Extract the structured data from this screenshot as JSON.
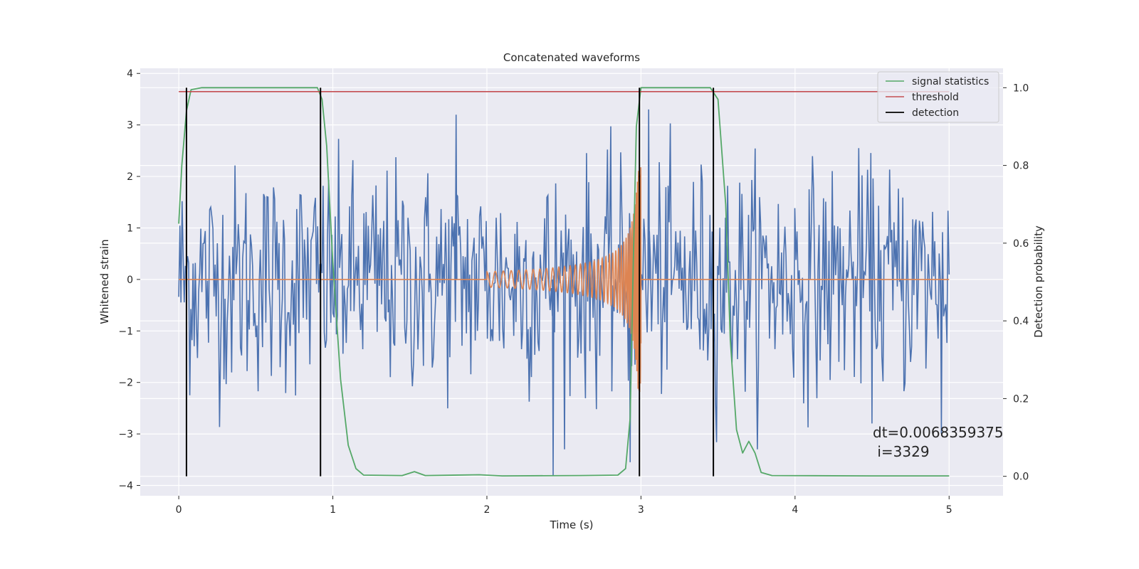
{
  "chart_data": {
    "type": "line",
    "title": "Concatenated waveforms",
    "xlabel": "Time (s)",
    "ylabel": "Whitened strain",
    "y2label": "Detection probability",
    "xlim": [
      -0.25,
      5.35
    ],
    "ylim": [
      -4.2,
      4.1
    ],
    "y2lim": [
      -0.05,
      1.05
    ],
    "xticks": [
      0,
      1,
      2,
      3,
      4,
      5
    ],
    "yticks": [
      -4,
      -3,
      -2,
      -1,
      0,
      1,
      2,
      3,
      4
    ],
    "y2ticks": [
      0.0,
      0.2,
      0.4,
      0.6,
      0.8,
      1.0
    ],
    "xtick_labels": [
      "0",
      "1",
      "2",
      "3",
      "4",
      "5"
    ],
    "ytick_labels": [
      "−4",
      "−3",
      "−2",
      "−1",
      "0",
      "1",
      "2",
      "3",
      "4"
    ],
    "y2tick_labels": [
      "0.0",
      "0.2",
      "0.4",
      "0.6",
      "0.8",
      "1.0"
    ],
    "grid": true,
    "legend_position": "top-right",
    "colors": {
      "noise": "#4c72b0",
      "chirp": "#dd8452",
      "signal_statistics": "#55a868",
      "threshold": "#c44e52",
      "detection": "#000000",
      "background": "#eaeaf2"
    },
    "series": [
      {
        "name": "",
        "axis": "left",
        "kind": "noise",
        "t_range": [
          0,
          5
        ],
        "sample_count": 700,
        "approx_amplitude": 2.6,
        "notable_peaks": [
          {
            "t": 2.43,
            "y": -3.8
          },
          {
            "t": 2.93,
            "y": -3.55
          },
          {
            "t": 1.8,
            "y": 3.2
          },
          {
            "t": 3.05,
            "y": 3.3
          },
          {
            "t": 4.95,
            "y": -3.0
          }
        ]
      },
      {
        "name": "",
        "axis": "left",
        "kind": "chirp",
        "points": [
          {
            "t": 0.0,
            "y": 0.0
          },
          {
            "t": 2.0,
            "y": 0.0
          },
          {
            "t": 2.0,
            "y": 0.15
          },
          {
            "t": 2.5,
            "y": 0.35
          },
          {
            "t": 2.8,
            "y": 0.7
          },
          {
            "t": 2.97,
            "y": 2.2
          },
          {
            "t": 3.0,
            "y": 0.0
          },
          {
            "t": 5.0,
            "y": 0.0
          }
        ],
        "chirp_start": 2.0,
        "chirp_end": 3.0,
        "start_amplitude": 0.15,
        "end_amplitude": 2.2
      },
      {
        "name": "signal statistics",
        "axis": "right",
        "points": [
          [
            0.0,
            0.65
          ],
          [
            0.02,
            0.8
          ],
          [
            0.05,
            0.94
          ],
          [
            0.08,
            0.995
          ],
          [
            0.15,
            1.0
          ],
          [
            0.9,
            1.0
          ],
          [
            0.93,
            0.97
          ],
          [
            0.96,
            0.85
          ],
          [
            1.0,
            0.55
          ],
          [
            1.05,
            0.25
          ],
          [
            1.1,
            0.08
          ],
          [
            1.15,
            0.02
          ],
          [
            1.2,
            0.003
          ],
          [
            1.45,
            0.002
          ],
          [
            1.53,
            0.012
          ],
          [
            1.6,
            0.002
          ],
          [
            1.95,
            0.004
          ],
          [
            2.1,
            0.001
          ],
          [
            2.6,
            0.002
          ],
          [
            2.85,
            0.003
          ],
          [
            2.9,
            0.02
          ],
          [
            2.93,
            0.15
          ],
          [
            2.95,
            0.55
          ],
          [
            2.97,
            0.9
          ],
          [
            3.0,
            1.0
          ],
          [
            3.45,
            1.0
          ],
          [
            3.5,
            0.97
          ],
          [
            3.55,
            0.7
          ],
          [
            3.58,
            0.35
          ],
          [
            3.62,
            0.12
          ],
          [
            3.66,
            0.06
          ],
          [
            3.7,
            0.09
          ],
          [
            3.74,
            0.06
          ],
          [
            3.78,
            0.01
          ],
          [
            3.85,
            0.002
          ],
          [
            4.5,
            0.001
          ],
          [
            5.0,
            0.001
          ]
        ]
      },
      {
        "name": "threshold",
        "axis": "right",
        "value": 0.99,
        "x_range": [
          0,
          5
        ]
      },
      {
        "name": "detection",
        "axis": "right",
        "lines": [
          0.05,
          0.92,
          2.99,
          3.47
        ],
        "y_range": [
          0.0,
          1.0
        ]
      }
    ],
    "annotations": [
      "dt=0.0068359375",
      " i=3329"
    ]
  }
}
